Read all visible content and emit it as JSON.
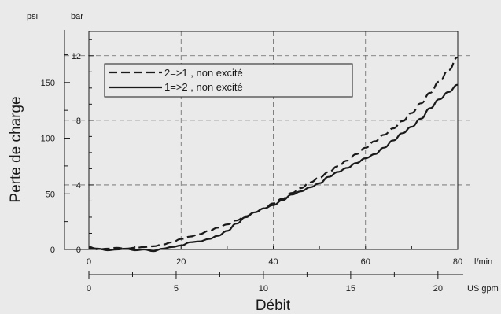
{
  "chart_data": {
    "type": "line",
    "title": "",
    "xlabel": "Débit",
    "ylabel": "Perte de charge",
    "x_units": {
      "primary": "l/min",
      "secondary": "US gpm"
    },
    "y_units": {
      "left_outer": "psi",
      "left_inner": "bar"
    },
    "xlim": [
      0,
      80
    ],
    "ylim_bar": [
      0,
      13.5
    ],
    "x_ticks_lpm": [
      "0",
      "20",
      "40",
      "60",
      "80"
    ],
    "x_ticks_gpm": [
      "0",
      "5",
      "10",
      "15",
      "20"
    ],
    "y_ticks_bar": [
      "0",
      "4",
      "8",
      "12"
    ],
    "y_ticks_psi": [
      "0",
      "50",
      "100",
      "150"
    ],
    "grid": true,
    "legend_position": "top-left",
    "series": [
      {
        "name": "2=>1 , non excité",
        "style": "dashed",
        "color": "#1a1a1a",
        "x": [
          0,
          2,
          4,
          6,
          8,
          10,
          12,
          14,
          16,
          18,
          20,
          22,
          24,
          26,
          28,
          30,
          32,
          34,
          36,
          38,
          40,
          42,
          44,
          46,
          48,
          50,
          52,
          54,
          56,
          58,
          60,
          62,
          64,
          66,
          68,
          70,
          72,
          74,
          76,
          78,
          80
        ],
        "values": [
          0.15,
          0.0,
          0.05,
          0.1,
          0.05,
          0.1,
          0.15,
          0.2,
          0.3,
          0.45,
          0.65,
          0.8,
          0.95,
          1.15,
          1.35,
          1.55,
          1.8,
          2.05,
          2.3,
          2.55,
          2.85,
          3.15,
          3.5,
          3.8,
          4.15,
          4.45,
          4.8,
          5.15,
          5.5,
          5.9,
          6.3,
          6.7,
          7.1,
          7.5,
          7.95,
          8.45,
          9.05,
          9.7,
          10.4,
          11.1,
          11.9
        ]
      },
      {
        "name": "1=>2 , non excité",
        "style": "solid",
        "color": "#1a1a1a",
        "x": [
          0,
          2,
          4,
          6,
          8,
          10,
          12,
          14,
          16,
          18,
          20,
          22,
          24,
          26,
          28,
          30,
          32,
          34,
          36,
          38,
          40,
          42,
          44,
          46,
          48,
          50,
          52,
          54,
          56,
          58,
          60,
          62,
          64,
          66,
          68,
          70,
          72,
          74,
          76,
          78,
          80
        ],
        "values": [
          0.1,
          0.05,
          -0.05,
          0.0,
          0.05,
          -0.05,
          0.0,
          -0.1,
          0.05,
          0.15,
          0.25,
          0.45,
          0.5,
          0.65,
          0.85,
          1.15,
          1.6,
          2.0,
          2.3,
          2.55,
          2.75,
          3.05,
          3.4,
          3.6,
          3.85,
          4.1,
          4.5,
          4.8,
          5.05,
          5.35,
          5.65,
          5.9,
          6.3,
          6.75,
          7.2,
          7.6,
          8.1,
          8.75,
          9.3,
          9.75,
          10.2
        ]
      }
    ]
  }
}
